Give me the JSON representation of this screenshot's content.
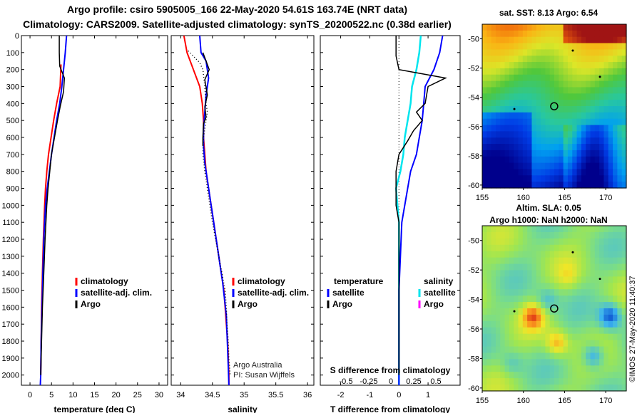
{
  "header": {
    "title_line1": "Argo profile: csiro 5905005_166 22-May-2020 54.61S 163.74E (NRT data)",
    "title_line2": "Climatology: CARS2009. Satellite-adjusted climatology: synTS_20200522.nc (0.38d earlier)"
  },
  "colors": {
    "argo": "#000000",
    "climatology": "#ff0000",
    "satellite": "#0000ff",
    "satellite_salinity_diff": "#00e5ee",
    "argo_salinity_diff": "#ff00ff"
  },
  "chart_data": [
    {
      "type": "line",
      "xlabel": "temperature (deg C)",
      "xlim": [
        -2,
        32
      ],
      "xticks": [
        0,
        5,
        10,
        15,
        20,
        25,
        30
      ],
      "ylim": [
        2060,
        0
      ],
      "yticks": [
        0,
        100,
        200,
        300,
        400,
        500,
        600,
        700,
        800,
        900,
        1000,
        1100,
        1200,
        1300,
        1400,
        1500,
        1600,
        1700,
        1800,
        1900,
        2000
      ],
      "legend": [
        "climatology",
        "satellite-adj. clim.",
        "Argo"
      ],
      "series": [
        {
          "name": "Argo",
          "points": [
            [
              6.8,
              0
            ],
            [
              6.8,
              100
            ],
            [
              6.9,
              180
            ],
            [
              8.0,
              250
            ],
            [
              7.8,
              330
            ],
            [
              7.0,
              420
            ],
            [
              6.4,
              500
            ],
            [
              5.7,
              600
            ],
            [
              5.0,
              700
            ],
            [
              4.6,
              800
            ],
            [
              4.2,
              900
            ],
            [
              3.9,
              1000
            ],
            [
              3.5,
              1200
            ],
            [
              3.2,
              1400
            ],
            [
              2.9,
              1600
            ],
            [
              2.7,
              1800
            ],
            [
              2.5,
              2000
            ]
          ]
        },
        {
          "name": "climatology",
          "points": [
            [
              7.2,
              170
            ],
            [
              7.0,
              300
            ],
            [
              6.2,
              400
            ],
            [
              5.5,
              500
            ],
            [
              4.9,
              600
            ],
            [
              4.3,
              700
            ],
            [
              3.9,
              800
            ],
            [
              3.6,
              900
            ],
            [
              3.4,
              1000
            ],
            [
              3.1,
              1200
            ],
            [
              2.9,
              1400
            ],
            [
              2.7,
              1600
            ],
            [
              2.6,
              1800
            ],
            [
              2.5,
              2000
            ]
          ]
        },
        {
          "name": "satellite-adj. clim.",
          "points": [
            [
              8.5,
              0
            ],
            [
              8.2,
              100
            ],
            [
              7.8,
              200
            ],
            [
              7.4,
              300
            ],
            [
              6.9,
              400
            ],
            [
              6.2,
              500
            ],
            [
              5.6,
              600
            ],
            [
              5.0,
              700
            ],
            [
              4.5,
              800
            ],
            [
              4.0,
              900
            ],
            [
              3.6,
              1000
            ],
            [
              3.2,
              1200
            ],
            [
              3.0,
              1400
            ],
            [
              2.8,
              1600
            ],
            [
              2.6,
              1800
            ],
            [
              2.5,
              2000
            ],
            [
              2.4,
              2060
            ]
          ]
        }
      ]
    },
    {
      "type": "line",
      "xlabel": "salinity",
      "xlim": [
        33.85,
        36.1
      ],
      "xticks": [
        34,
        34.5,
        35,
        35.5,
        36
      ],
      "ylim": [
        2060,
        0
      ],
      "legend": [
        "climatology",
        "satellite-adj. clim.",
        "Argo"
      ],
      "series": [
        {
          "name": "Argo",
          "points": [
            [
              34.35,
              100
            ],
            [
              34.4,
              150
            ],
            [
              34.45,
              200
            ],
            [
              34.38,
              260
            ],
            [
              34.42,
              350
            ],
            [
              34.38,
              420
            ],
            [
              34.4,
              480
            ],
            [
              34.36,
              520
            ],
            [
              34.35,
              600
            ],
            [
              34.35,
              650
            ]
          ]
        },
        {
          "name": "Argo (dotted)",
          "points": [
            [
              34.12,
              90
            ],
            [
              34.3,
              160
            ],
            [
              34.35,
              200
            ],
            [
              34.38,
              300
            ],
            [
              34.4,
              400
            ],
            [
              34.42,
              450
            ],
            [
              34.4,
              500
            ],
            [
              34.36,
              600
            ],
            [
              34.35,
              700
            ],
            [
              34.38,
              800
            ],
            [
              34.42,
              900
            ],
            [
              34.46,
              1000
            ],
            [
              34.5,
              1100
            ],
            [
              34.55,
              1200
            ],
            [
              34.6,
              1300
            ],
            [
              34.65,
              1400
            ],
            [
              34.7,
              1500
            ],
            [
              34.72,
              1600
            ],
            [
              34.73,
              1700
            ],
            [
              34.75,
              1800
            ],
            [
              34.76,
              1900
            ],
            [
              34.78,
              2000
            ]
          ]
        },
        {
          "name": "climatology",
          "points": [
            [
              34.05,
              0
            ],
            [
              34.1,
              100
            ],
            [
              34.2,
              200
            ],
            [
              34.3,
              300
            ],
            [
              34.34,
              400
            ],
            [
              34.36,
              500
            ],
            [
              34.36,
              600
            ],
            [
              34.38,
              700
            ],
            [
              34.4,
              800
            ],
            [
              34.44,
              900
            ],
            [
              34.48,
              1000
            ],
            [
              34.52,
              1100
            ],
            [
              34.56,
              1200
            ],
            [
              34.6,
              1300
            ],
            [
              34.64,
              1400
            ],
            [
              34.68,
              1500
            ],
            [
              34.7,
              1600
            ],
            [
              34.72,
              1700
            ],
            [
              34.74,
              1800
            ],
            [
              34.75,
              1900
            ],
            [
              34.76,
              2000
            ],
            [
              34.76,
              2060
            ]
          ]
        },
        {
          "name": "satellite-adj. clim.",
          "points": [
            [
              34.3,
              0
            ],
            [
              34.32,
              100
            ],
            [
              34.4,
              150
            ],
            [
              34.44,
              250
            ],
            [
              34.4,
              350
            ],
            [
              34.38,
              450
            ],
            [
              34.36,
              550
            ],
            [
              34.36,
              650
            ],
            [
              34.38,
              750
            ],
            [
              34.42,
              850
            ],
            [
              34.46,
              950
            ],
            [
              34.5,
              1050
            ],
            [
              34.54,
              1150
            ],
            [
              34.58,
              1250
            ],
            [
              34.62,
              1350
            ],
            [
              34.66,
              1450
            ],
            [
              34.69,
              1550
            ],
            [
              34.72,
              1650
            ],
            [
              34.73,
              1750
            ],
            [
              34.74,
              1850
            ],
            [
              34.75,
              1950
            ],
            [
              34.76,
              2060
            ]
          ]
        }
      ],
      "annotations": [
        "Argo Australia",
        "PI: Susan Wijffels"
      ]
    },
    {
      "type": "line",
      "xlabel": "T difference from climatology",
      "xlim": [
        -2.7,
        2.1
      ],
      "xticks": [
        -2,
        -1,
        0,
        1
      ],
      "top_xlabel": "S difference from climatology",
      "top_xticks": [
        -0.5,
        -0.25,
        0,
        0.25,
        0.5
      ],
      "ylim": [
        2060,
        0
      ],
      "legend_headers": [
        "temperature",
        "salinity"
      ],
      "legend": [
        "satellite",
        "Argo",
        "satellite",
        "Argo"
      ],
      "series": [
        {
          "name": "temperature Argo",
          "points": [
            [
              -0.1,
              0
            ],
            [
              -0.1,
              120
            ],
            [
              0,
              200
            ],
            [
              1.6,
              250
            ],
            [
              1.0,
              300
            ],
            [
              0.9,
              400
            ],
            [
              0.6,
              450
            ],
            [
              0.8,
              500
            ],
            [
              0.5,
              560
            ],
            [
              0.3,
              620
            ],
            [
              0,
              700
            ],
            [
              -0.1,
              800
            ],
            [
              -0.1,
              900
            ],
            [
              -0.1,
              1000
            ],
            [
              0,
              1100
            ],
            [
              0,
              1300
            ],
            [
              0,
              1500
            ],
            [
              0,
              1700
            ],
            [
              0,
              1900
            ],
            [
              0,
              2000
            ]
          ]
        },
        {
          "name": "temperature satellite",
          "points": [
            [
              1.5,
              0
            ],
            [
              1.4,
              100
            ],
            [
              1.2,
              200
            ],
            [
              0.9,
              300
            ],
            [
              0.85,
              400
            ],
            [
              0.8,
              500
            ],
            [
              0.7,
              600
            ],
            [
              0.6,
              700
            ],
            [
              0.4,
              800
            ],
            [
              0.3,
              900
            ],
            [
              0.2,
              1000
            ],
            [
              0.1,
              1100
            ],
            [
              0.05,
              1300
            ],
            [
              0,
              1500
            ],
            [
              0,
              1700
            ],
            [
              0,
              1900
            ],
            [
              0,
              2060
            ]
          ]
        },
        {
          "name": "salinity satellite",
          "points": [
            [
              0.75,
              0
            ],
            [
              0.7,
              100
            ],
            [
              0.6,
              200
            ],
            [
              0.45,
              300
            ],
            [
              0.4,
              400
            ],
            [
              0.3,
              500
            ],
            [
              0.2,
              600
            ],
            [
              0.15,
              700
            ],
            [
              0.05,
              800
            ],
            [
              -0.1,
              900
            ],
            [
              -0.05,
              1000
            ],
            [
              0,
              1100
            ],
            [
              0,
              1300
            ],
            [
              0,
              1500
            ],
            [
              0,
              1700
            ],
            [
              0,
              1900
            ],
            [
              0,
              2060
            ]
          ]
        }
      ]
    }
  ],
  "maps": {
    "top": {
      "title": "sat. SST: 8.13 Argo: 6.54",
      "lat_ticks": [
        -50,
        -52,
        -54,
        -56,
        -58,
        -60
      ],
      "lon_ticks": [
        155,
        160,
        165,
        170
      ]
    },
    "bottom": {
      "title_line1": "Altim. SLA: 0.05",
      "title_line2": "Argo h1000: NaN h2000: NaN",
      "lat_ticks": [
        -50,
        -52,
        -54,
        -56,
        -58,
        -60
      ],
      "lon_ticks": [
        155,
        160,
        165,
        170
      ]
    }
  },
  "credit": "©IMOS 27-May-2020 11:40:37"
}
